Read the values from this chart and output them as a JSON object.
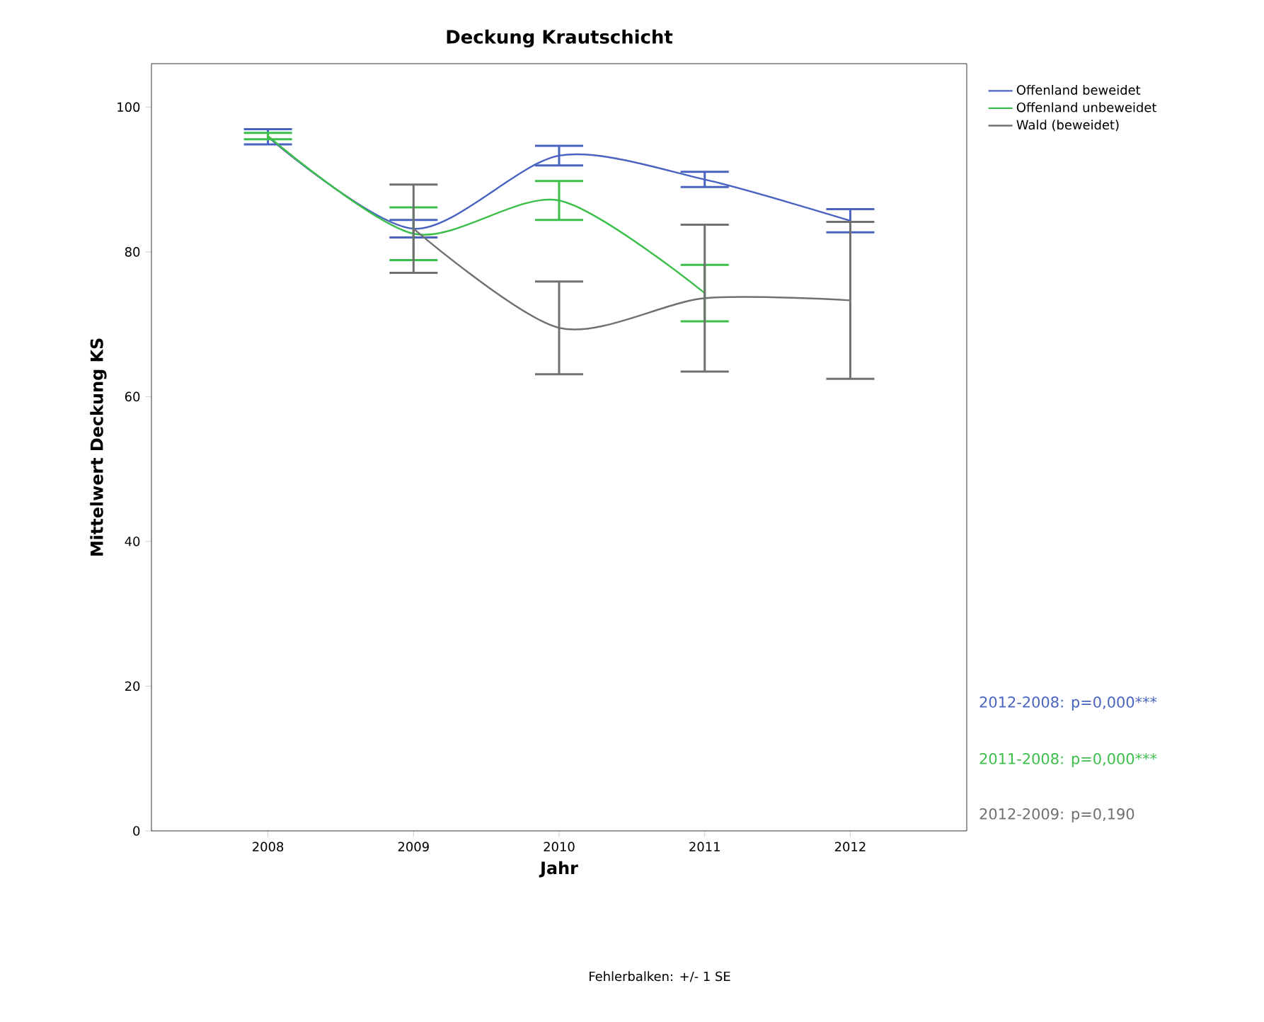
{
  "chart_data": {
    "type": "line",
    "title": "Deckung Krautschicht",
    "xlabel": "Jahr",
    "ylabel": "Mittelwert Deckung KS",
    "categories": [
      "2008",
      "2009",
      "2010",
      "2011",
      "2012"
    ],
    "series": [
      {
        "name": "Offenland beweidet",
        "color": "#4a63c0",
        "values": [
          95.9,
          83.2,
          93.3,
          90.0,
          84.3
        ],
        "errors": [
          1.05,
          1.2,
          1.35,
          1.05,
          1.6
        ]
      },
      {
        "name": "Offenland unbeweidet",
        "color": "#3cbf4a",
        "values": [
          96.0,
          82.5,
          87.1,
          74.3,
          null
        ],
        "errors": [
          0.45,
          3.65,
          2.7,
          3.9,
          null
        ]
      },
      {
        "name": "Wald (beweidet)",
        "color": "#707070",
        "values": [
          null,
          83.2,
          69.5,
          73.6,
          73.3
        ],
        "errors": [
          null,
          6.1,
          6.4,
          10.15,
          10.85
        ]
      }
    ],
    "ylim": [
      0,
      106
    ],
    "yticks": [
      0,
      20,
      40,
      60,
      80,
      100
    ],
    "grid": false,
    "legend": "top right",
    "marker": "none",
    "line_style": "solid",
    "annotations": [
      "2012-2008: p=0,000***",
      "2011-2008: p=0,000***",
      "2012-2009: p=0,190",
      "Fehlerbalken: +/- 1 SE"
    ]
  }
}
